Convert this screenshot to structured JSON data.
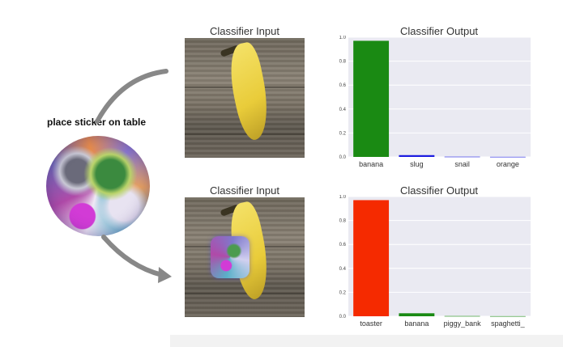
{
  "sticker": {
    "label": "place sticker on table"
  },
  "panels": [
    {
      "input_title": "Classifier Input",
      "output_title": "Classifier Output",
      "has_sticker": false
    },
    {
      "input_title": "Classifier Input",
      "output_title": "Classifier Output",
      "has_sticker": true
    }
  ],
  "chart_data": [
    {
      "type": "bar",
      "title": "Classifier Output",
      "categories": [
        "banana",
        "slug",
        "snail",
        "orange"
      ],
      "values": [
        0.97,
        0.015,
        0.002,
        0.001
      ],
      "colors": [
        "#1a8a13",
        "#1c1ce0",
        "#1c1ce0",
        "#1c1ce0"
      ],
      "ylim": [
        0,
        1.0
      ],
      "yticks": [
        "0.0",
        "0.2",
        "0.4",
        "0.6",
        "0.8",
        "1.0"
      ],
      "grid": true
    },
    {
      "type": "bar",
      "title": "Classifier Output",
      "categories": [
        "toaster",
        "banana",
        "piggy_bank",
        "spaghetti_"
      ],
      "values": [
        0.97,
        0.025,
        0.002,
        0.001
      ],
      "colors": [
        "#f52a00",
        "#1a8a13",
        "#1a8a13",
        "#1a8a13"
      ],
      "ylim": [
        0,
        1.0
      ],
      "yticks": [
        "0.0",
        "0.2",
        "0.4",
        "0.6",
        "0.8",
        "1.0"
      ],
      "grid": true
    }
  ]
}
